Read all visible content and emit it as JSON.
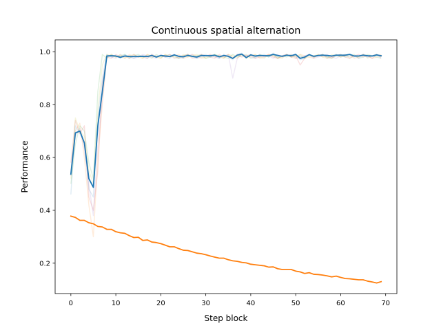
{
  "chart_data": {
    "type": "line",
    "title": "Continuous spatial alternation",
    "xlabel": "Step block",
    "ylabel": "Performance",
    "xlim": [
      -3.5,
      72.5
    ],
    "ylim": [
      0.085,
      1.045
    ],
    "xticks": [
      0,
      10,
      20,
      30,
      40,
      50,
      60,
      70
    ],
    "yticks": [
      0.2,
      0.4,
      0.6,
      0.8,
      1.0
    ],
    "xtick_labels": [
      "0",
      "10",
      "20",
      "30",
      "40",
      "50",
      "60",
      "70"
    ],
    "ytick_labels": [
      "0.2",
      "0.4",
      "0.6",
      "0.8",
      "1.0"
    ],
    "grid": false,
    "legend": "none",
    "series": [
      {
        "color": "#1f77b4",
        "values": [
          0.537,
          0.693,
          0.7,
          0.655,
          0.52,
          0.487,
          0.72,
          0.85,
          0.984,
          0.985,
          0.984,
          0.979,
          0.984,
          0.982,
          0.982,
          0.982,
          0.983,
          0.982,
          0.986,
          0.98,
          0.986,
          0.984,
          0.982,
          0.988,
          0.983,
          0.981,
          0.986,
          0.983,
          0.98,
          0.986,
          0.985,
          0.985,
          0.987,
          0.981,
          0.986,
          0.983,
          0.975,
          0.987,
          0.991,
          0.978,
          0.988,
          0.984,
          0.986,
          0.985,
          0.985,
          0.99,
          0.986,
          0.983,
          0.987,
          0.985,
          0.99,
          0.975,
          0.98,
          0.989,
          0.983,
          0.986,
          0.987,
          0.986,
          0.984,
          0.987,
          0.987,
          0.987,
          0.99,
          0.984,
          0.984,
          0.987,
          0.985,
          0.984,
          0.988,
          0.985
        ]
      },
      {
        "color": "#ff7f0e",
        "values": [
          0.378,
          0.373,
          0.362,
          0.362,
          0.353,
          0.349,
          0.339,
          0.337,
          0.328,
          0.328,
          0.319,
          0.315,
          0.313,
          0.304,
          0.297,
          0.298,
          0.286,
          0.288,
          0.28,
          0.278,
          0.274,
          0.268,
          0.262,
          0.262,
          0.255,
          0.249,
          0.248,
          0.243,
          0.238,
          0.236,
          0.232,
          0.227,
          0.223,
          0.219,
          0.219,
          0.213,
          0.209,
          0.207,
          0.203,
          0.201,
          0.196,
          0.194,
          0.192,
          0.19,
          0.185,
          0.186,
          0.179,
          0.176,
          0.176,
          0.176,
          0.17,
          0.167,
          0.161,
          0.164,
          0.158,
          0.157,
          0.155,
          0.152,
          0.148,
          0.151,
          0.146,
          0.142,
          0.141,
          0.139,
          0.137,
          0.137,
          0.132,
          0.129,
          0.125,
          0.13
        ]
      }
    ],
    "faint_series": [
      {
        "color": "#1f77b4",
        "values": [
          0.46,
          0.72,
          0.69,
          0.66,
          0.48,
          0.45,
          0.75,
          0.9,
          0.99,
          0.98,
          0.985,
          0.975,
          0.99,
          0.98,
          0.975,
          0.985,
          0.98,
          0.975,
          0.99,
          0.98,
          0.985,
          0.98,
          0.975,
          0.99,
          0.98,
          0.975,
          0.99,
          0.98,
          0.975,
          0.985,
          0.99,
          0.98,
          0.985,
          0.975,
          0.99,
          0.98,
          0.97,
          0.99,
          0.995,
          0.975,
          0.99,
          0.98,
          0.985,
          0.99,
          0.98,
          0.995,
          0.98,
          0.985,
          0.99,
          0.98,
          0.99,
          0.97,
          0.975,
          0.99,
          0.98,
          0.985,
          0.99,
          0.98,
          0.985,
          0.99,
          0.98,
          0.985,
          0.99,
          0.98,
          0.985,
          0.99,
          0.98,
          0.985,
          0.99,
          0.98
        ]
      },
      {
        "color": "#ff7f0e",
        "values": [
          0.55,
          0.7,
          0.73,
          0.6,
          0.42,
          0.3,
          0.6,
          0.8,
          0.98,
          0.99,
          0.98,
          0.985,
          0.975,
          0.99,
          0.98,
          0.985,
          0.975,
          0.99,
          0.98,
          0.985,
          0.975,
          0.99,
          0.98,
          0.985,
          0.99,
          0.975,
          0.98,
          0.99,
          0.985,
          0.975,
          0.98,
          0.99,
          0.98,
          0.985,
          0.975,
          0.99,
          0.98,
          0.975,
          0.99,
          0.985,
          0.98,
          0.99,
          0.975,
          0.98,
          0.99,
          0.985,
          0.975,
          0.98,
          0.99,
          0.98,
          0.975,
          0.99,
          0.985,
          0.98,
          0.975,
          0.99,
          0.98,
          0.985,
          0.975,
          0.99,
          0.98,
          0.985,
          0.99,
          0.975,
          0.98,
          0.99,
          0.985,
          0.975,
          0.98,
          0.99
        ]
      },
      {
        "color": "#2ca02c",
        "values": [
          0.5,
          0.65,
          0.72,
          0.7,
          0.58,
          0.52,
          0.85,
          0.99,
          0.975,
          0.99,
          0.98,
          0.985,
          0.99,
          0.975,
          0.985,
          0.99,
          0.98,
          0.985,
          0.975,
          0.99,
          0.98,
          0.985,
          0.99,
          0.98,
          0.975,
          0.985,
          0.99,
          0.98,
          0.985,
          0.99,
          0.975,
          0.98,
          0.99,
          0.985,
          0.98,
          0.975,
          0.99,
          0.98,
          0.985,
          0.99,
          0.975,
          0.98,
          0.99,
          0.985,
          0.98,
          0.99,
          0.975,
          0.985,
          0.98,
          0.99,
          0.98,
          0.985,
          0.975,
          0.99,
          0.98,
          0.985,
          0.99,
          0.98,
          0.975,
          0.985,
          0.99,
          0.98,
          0.985,
          0.99,
          0.975,
          0.98,
          0.99,
          0.985,
          0.98,
          0.975
        ]
      },
      {
        "color": "#d62728",
        "values": [
          0.58,
          0.74,
          0.69,
          0.72,
          0.45,
          0.4,
          0.55,
          0.88,
          0.98,
          0.975,
          0.99,
          0.98,
          0.985,
          0.975,
          0.99,
          0.98,
          0.985,
          0.975,
          0.99,
          0.98,
          0.985,
          0.98,
          0.99,
          0.975,
          0.98,
          0.985,
          0.99,
          0.975,
          0.98,
          0.99,
          0.985,
          0.98,
          0.975,
          0.99,
          0.98,
          0.985,
          0.975,
          0.99,
          0.98,
          0.985,
          0.99,
          0.975,
          0.98,
          0.985,
          0.99,
          0.98,
          0.975,
          0.985,
          0.99,
          0.98,
          0.985,
          0.95,
          0.975,
          0.99,
          0.98,
          0.985,
          0.99,
          0.975,
          0.98,
          0.985,
          0.99,
          0.98,
          0.975,
          0.985,
          0.99,
          0.98,
          0.985,
          0.975,
          0.99,
          0.98
        ]
      },
      {
        "color": "#9467bd",
        "values": [
          0.53,
          0.68,
          0.71,
          0.63,
          0.5,
          0.38,
          0.65,
          0.82,
          0.985,
          0.98,
          0.975,
          0.99,
          0.98,
          0.985,
          0.975,
          0.98,
          0.99,
          0.985,
          0.98,
          0.975,
          0.99,
          0.98,
          0.985,
          0.99,
          0.975,
          0.98,
          0.985,
          0.99,
          0.975,
          0.98,
          0.985,
          0.99,
          0.98,
          0.975,
          0.985,
          0.99,
          0.9,
          0.975,
          0.99,
          0.985,
          0.98,
          0.975,
          0.99,
          0.98,
          0.985,
          0.975,
          0.99,
          0.98,
          0.985,
          0.99,
          0.975,
          0.98,
          0.985,
          0.99,
          0.975,
          0.98,
          0.985,
          0.99,
          0.98,
          0.975,
          0.985,
          0.99,
          0.98,
          0.985,
          0.975,
          0.99,
          0.98,
          0.985,
          0.99,
          0.975
        ]
      },
      {
        "color": "#bcbd22",
        "values": [
          0.52,
          0.75,
          0.7,
          0.68,
          0.55,
          0.5,
          0.78,
          0.95,
          0.99,
          0.985,
          0.98,
          0.99,
          0.975,
          0.985,
          0.99,
          0.98,
          0.975,
          0.99,
          0.985,
          0.98,
          0.975,
          0.99,
          0.98,
          0.985,
          0.975,
          0.99,
          0.98,
          0.985,
          0.99,
          0.98,
          0.975,
          0.985,
          0.99,
          0.98,
          0.975,
          0.99,
          0.985,
          0.98,
          0.99,
          0.975,
          0.985,
          0.99,
          0.98,
          0.975,
          0.99,
          0.985,
          0.98,
          0.975,
          0.99,
          0.98,
          0.985,
          0.99,
          0.975,
          0.98,
          0.985,
          0.99,
          0.98,
          0.975,
          0.99,
          0.985,
          0.98,
          0.99,
          0.975,
          0.985,
          0.98,
          0.99,
          0.975,
          0.985,
          0.99,
          0.98
        ]
      }
    ]
  }
}
